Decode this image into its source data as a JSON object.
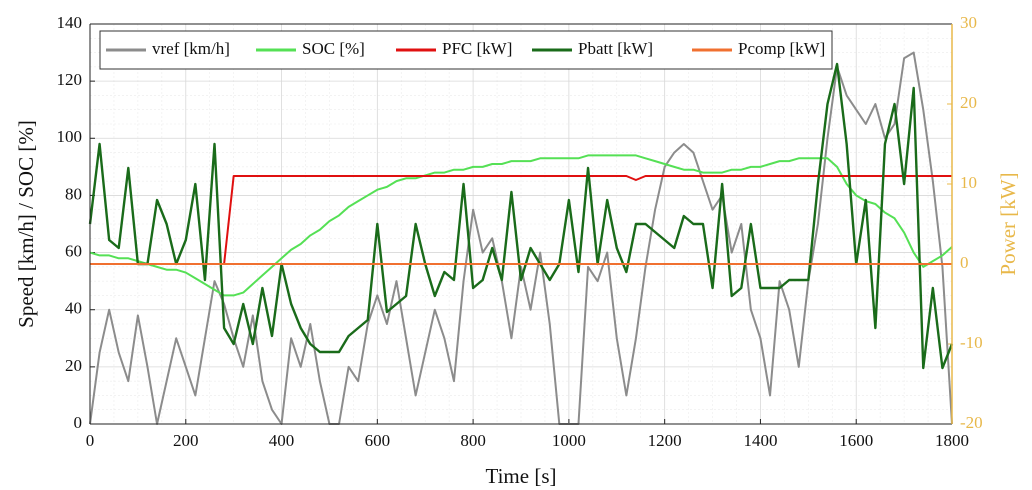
{
  "chart_data": {
    "type": "line",
    "xlabel": "Time [s]",
    "ylabel": "Speed [km/h] / SOC [%]",
    "y2label": "Power [kW]",
    "x": [
      0,
      20,
      40,
      60,
      80,
      100,
      120,
      140,
      160,
      180,
      200,
      220,
      240,
      260,
      280,
      300,
      320,
      340,
      360,
      380,
      400,
      420,
      440,
      460,
      480,
      500,
      520,
      540,
      560,
      580,
      600,
      620,
      640,
      660,
      680,
      700,
      720,
      740,
      760,
      780,
      800,
      820,
      840,
      860,
      880,
      900,
      920,
      940,
      960,
      980,
      1000,
      1020,
      1040,
      1060,
      1080,
      1100,
      1120,
      1140,
      1160,
      1180,
      1200,
      1220,
      1240,
      1260,
      1280,
      1300,
      1320,
      1340,
      1360,
      1380,
      1400,
      1420,
      1440,
      1460,
      1480,
      1500,
      1520,
      1540,
      1560,
      1580,
      1600,
      1620,
      1640,
      1660,
      1680,
      1700,
      1720,
      1740,
      1760,
      1780,
      1800
    ],
    "xlim": [
      0,
      1800
    ],
    "xticks": [
      0,
      200,
      400,
      600,
      800,
      1000,
      1200,
      1400,
      1600,
      1800
    ],
    "ylim": [
      0,
      140
    ],
    "yticks": [
      0,
      20,
      40,
      60,
      80,
      100,
      120,
      140
    ],
    "y2lim": [
      -20,
      30
    ],
    "y2ticks": [
      -20,
      -10,
      0,
      10,
      20,
      30
    ],
    "grid": true,
    "legend": "top",
    "series": [
      {
        "name": "vref [km/h]",
        "color": "#8c8c8c",
        "values": [
          0,
          25,
          40,
          25,
          15,
          38,
          20,
          0,
          15,
          30,
          20,
          10,
          30,
          50,
          42,
          30,
          20,
          38,
          15,
          5,
          0,
          30,
          20,
          35,
          15,
          0,
          0,
          20,
          15,
          35,
          45,
          35,
          50,
          30,
          10,
          25,
          40,
          30,
          15,
          50,
          75,
          60,
          65,
          50,
          30,
          55,
          40,
          60,
          35,
          0,
          0,
          0,
          55,
          50,
          60,
          30,
          10,
          30,
          55,
          75,
          90,
          95,
          98,
          95,
          85,
          75,
          80,
          60,
          70,
          40,
          30,
          10,
          50,
          40,
          20,
          50,
          70,
          100,
          125,
          115,
          110,
          105,
          112,
          100,
          105,
          128,
          130,
          110,
          85,
          55,
          0
        ]
      },
      {
        "name": "SOC [%]",
        "color": "#55e055",
        "values": [
          60,
          59,
          59,
          58,
          58,
          57,
          56,
          55,
          54,
          54,
          53,
          51,
          49,
          47,
          45,
          45,
          46,
          49,
          52,
          55,
          58,
          61,
          63,
          66,
          68,
          71,
          73,
          76,
          78,
          80,
          82,
          83,
          85,
          86,
          86,
          87,
          88,
          88,
          89,
          89,
          90,
          90,
          91,
          91,
          92,
          92,
          92,
          93,
          93,
          93,
          93,
          93,
          94,
          94,
          94,
          94,
          94,
          94,
          93,
          92,
          91,
          90,
          89,
          89,
          88,
          88,
          88,
          89,
          89,
          90,
          90,
          91,
          92,
          92,
          93,
          93,
          93,
          93,
          90,
          84,
          80,
          78,
          77,
          74,
          72,
          67,
          60,
          55,
          57,
          59,
          62
        ]
      },
      {
        "name": "PFC [kW]",
        "color": "#e01010",
        "axis": "y2",
        "values": [
          0,
          0,
          0,
          0,
          0,
          0,
          0,
          0,
          0,
          0,
          0,
          0,
          0,
          0,
          0,
          11,
          11,
          11,
          11,
          11,
          11,
          11,
          11,
          11,
          11,
          11,
          11,
          11,
          11,
          11,
          11,
          11,
          11,
          11,
          11,
          11,
          11,
          11,
          11,
          11,
          11,
          11,
          11,
          11,
          11,
          11,
          11,
          11,
          11,
          11,
          11,
          11,
          11,
          11,
          11,
          11,
          11,
          10.5,
          11,
          11,
          11,
          11,
          11,
          11,
          11,
          11,
          11,
          11,
          11,
          11,
          11,
          11,
          11,
          11,
          11,
          11,
          11,
          11,
          11,
          11,
          11,
          11,
          11,
          11,
          11,
          11,
          11,
          11,
          11,
          11,
          11
        ]
      },
      {
        "name": "Pbatt [kW]",
        "color": "#1a6b1a",
        "axis": "y2",
        "values": [
          5,
          15,
          3,
          2,
          12,
          0,
          0,
          8,
          5,
          0,
          3,
          10,
          -2,
          15,
          -8,
          -10,
          -5,
          -10,
          -3,
          -9,
          0,
          -5,
          -8,
          -10,
          -11,
          -11,
          -11,
          -9,
          -8,
          -7,
          5,
          -6,
          -5,
          -4,
          5,
          0,
          -4,
          -1,
          -2,
          10,
          -3,
          -2,
          2,
          -2,
          9,
          -2,
          2,
          0,
          -2,
          0,
          8,
          -1,
          12,
          0,
          8,
          2,
          -1,
          5,
          5,
          4,
          3,
          2,
          6,
          5,
          5,
          -3,
          10,
          -4,
          -3,
          5,
          -3,
          -3,
          -3,
          -2,
          -2,
          -2,
          10,
          20,
          25,
          15,
          0,
          8,
          -8,
          15,
          20,
          10,
          22,
          -13,
          -3,
          -13,
          -10
        ]
      },
      {
        "name": "Pcomp [kW]",
        "color": "#f07030",
        "axis": "y2",
        "values": [
          0,
          0,
          0,
          0,
          0,
          0,
          0,
          0,
          0,
          0,
          0,
          0,
          0,
          0,
          0,
          0,
          0,
          0,
          0,
          0,
          0,
          0,
          0,
          0,
          0,
          0,
          0,
          0,
          0,
          0,
          0,
          0,
          0,
          0,
          0,
          0,
          0,
          0,
          0,
          0,
          0,
          0,
          0,
          0,
          0,
          0,
          0,
          0,
          0,
          0,
          0,
          0,
          0,
          0,
          0,
          0,
          0,
          0,
          0,
          0,
          0,
          0,
          0,
          0,
          0,
          0,
          0,
          0,
          0,
          0,
          0,
          0,
          0,
          0,
          0,
          0,
          0,
          0,
          0,
          0,
          0,
          0,
          0,
          0,
          0,
          0,
          0,
          0,
          0,
          0,
          0
        ]
      }
    ]
  }
}
